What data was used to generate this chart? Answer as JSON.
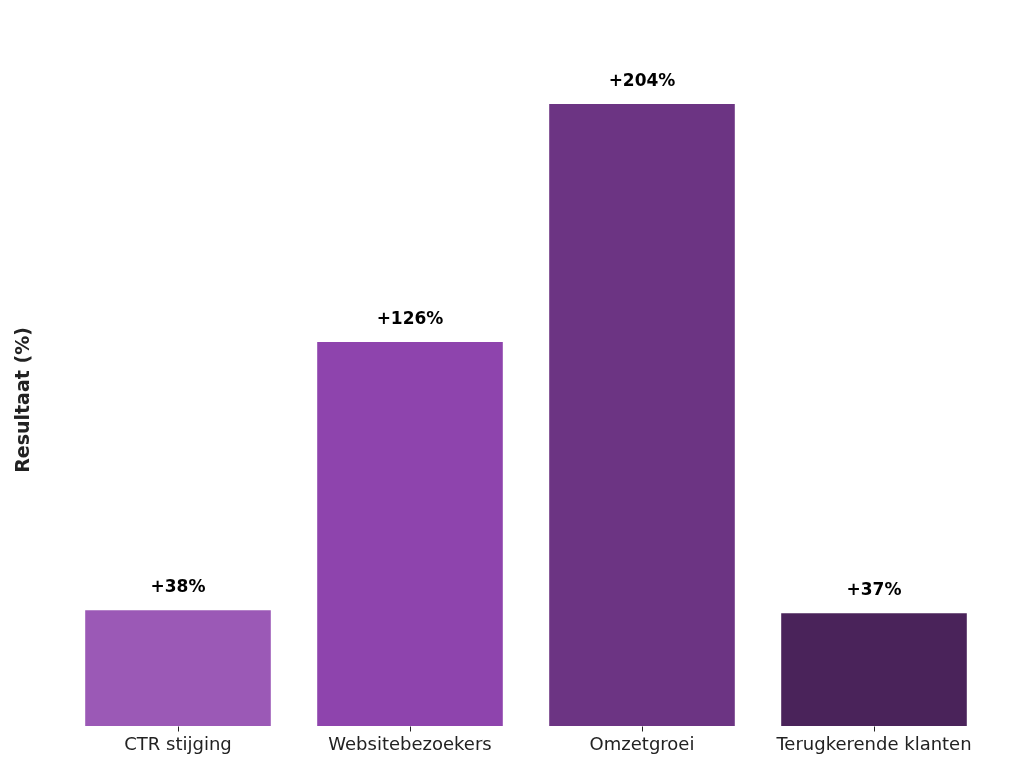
{
  "chart_data": {
    "type": "bar",
    "ylabel": "Resultaat (%)",
    "categories": [
      "CTR stijging",
      "Websitebezoekers",
      "Omzetgroei",
      "Terugkerende klanten"
    ],
    "values": [
      38,
      126,
      204,
      37
    ],
    "colors": [
      "#9b59b6",
      "#8e44ad",
      "#6c3483",
      "#4a235a"
    ],
    "value_labels": [
      "+38%",
      "+126%",
      "+204%",
      "+37%"
    ],
    "grid": false
  }
}
